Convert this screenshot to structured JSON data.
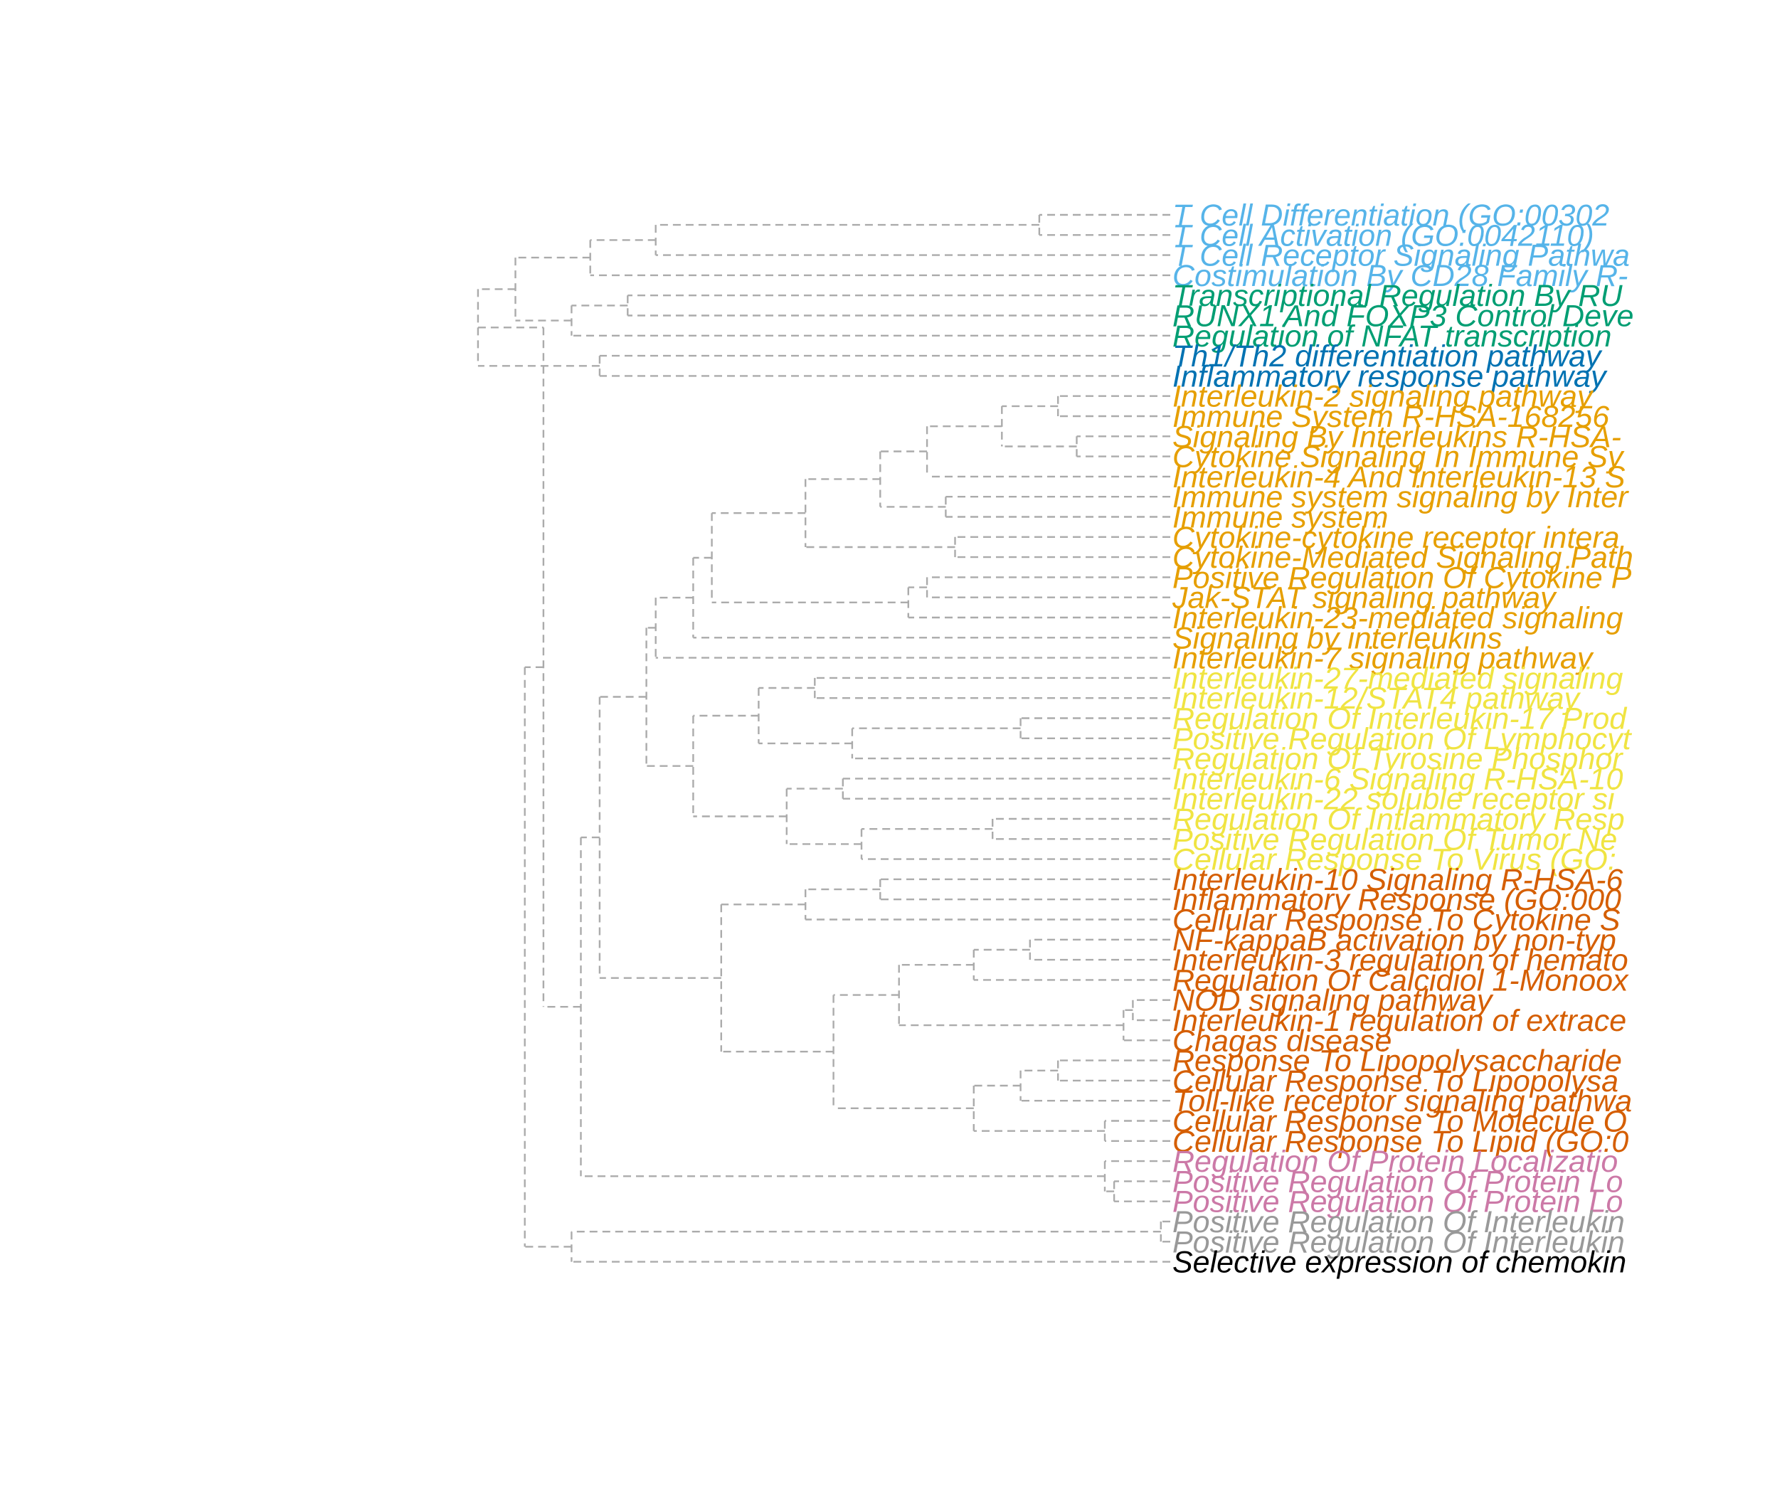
{
  "colors": {
    "branch": "#ababab",
    "sky_blue": "#56b4e9",
    "green": "#009e73",
    "blue": "#0072b2",
    "orange": "#e69f00",
    "yellow": "#f0e442",
    "vermillion": "#d55e00",
    "pink": "#cc79a7",
    "grey": "#999999",
    "black": "#000000"
  },
  "leaves": [
    {
      "label": "T Cell Differentiation (GO:00302",
      "color": "sky_blue"
    },
    {
      "label": "T Cell Activation (GO:0042110)",
      "color": "sky_blue"
    },
    {
      "label": "T Cell Receptor Signaling Pathwa",
      "color": "sky_blue"
    },
    {
      "label": "Costimulation By CD28 Family R-",
      "color": "sky_blue"
    },
    {
      "label": "Transcriptional Regulation By RU",
      "color": "green"
    },
    {
      "label": "RUNX1 And FOXP3 Control Deve",
      "color": "green"
    },
    {
      "label": "Regulation of NFAT transcription",
      "color": "green"
    },
    {
      "label": "Th1/Th2 differentiation pathway",
      "color": "blue"
    },
    {
      "label": "Inflammatory response pathway",
      "color": "blue"
    },
    {
      "label": "Interleukin-2 signaling pathway",
      "color": "orange"
    },
    {
      "label": "Immune System R-HSA-168256",
      "color": "orange"
    },
    {
      "label": "Signaling By Interleukins R-HSA-",
      "color": "orange"
    },
    {
      "label": "Cytokine Signaling In Immune Sy",
      "color": "orange"
    },
    {
      "label": "Interleukin-4 And Interleukin-13 S",
      "color": "orange"
    },
    {
      "label": "Immune system signaling by Inter",
      "color": "orange"
    },
    {
      "label": "Immune system",
      "color": "orange"
    },
    {
      "label": "Cytokine-cytokine receptor intera",
      "color": "orange"
    },
    {
      "label": "Cytokine-Mediated Signaling Path",
      "color": "orange"
    },
    {
      "label": "Positive Regulation Of Cytokine P",
      "color": "orange"
    },
    {
      "label": "Jak-STAT signaling pathway",
      "color": "orange"
    },
    {
      "label": "Interleukin-23-mediated signaling",
      "color": "orange"
    },
    {
      "label": "Signaling by interleukins",
      "color": "orange"
    },
    {
      "label": "Interleukin-7 signaling pathway",
      "color": "orange"
    },
    {
      "label": "Interleukin-27-mediated signaling",
      "color": "yellow"
    },
    {
      "label": "Interleukin-12/STAT4 pathway",
      "color": "yellow"
    },
    {
      "label": "Regulation Of Interleukin-17 Prod",
      "color": "yellow"
    },
    {
      "label": "Positive Regulation Of Lymphocyt",
      "color": "yellow"
    },
    {
      "label": "Regulation Of Tyrosine Phosphor",
      "color": "yellow"
    },
    {
      "label": "Interleukin-6 Signaling R-HSA-10",
      "color": "yellow"
    },
    {
      "label": "Interleukin-22 soluble receptor si",
      "color": "yellow"
    },
    {
      "label": "Regulation Of Inflammatory Resp",
      "color": "yellow"
    },
    {
      "label": "Positive Regulation Of Tumor Ne",
      "color": "yellow"
    },
    {
      "label": "Cellular Response To Virus (GO:",
      "color": "yellow"
    },
    {
      "label": "Interleukin-10 Signaling R-HSA-6",
      "color": "vermillion"
    },
    {
      "label": "Inflammatory Response (GO:000",
      "color": "vermillion"
    },
    {
      "label": "Cellular Response To Cytokine S",
      "color": "vermillion"
    },
    {
      "label": "NF-kappaB activation by non-typ",
      "color": "vermillion"
    },
    {
      "label": "Interleukin-3 regulation of hemato",
      "color": "vermillion"
    },
    {
      "label": "Regulation Of Calcidiol 1-Monoox",
      "color": "vermillion"
    },
    {
      "label": "NOD signaling pathway",
      "color": "vermillion"
    },
    {
      "label": "Interleukin-1 regulation of extrace",
      "color": "vermillion"
    },
    {
      "label": "Chagas disease",
      "color": "vermillion"
    },
    {
      "label": "Response To Lipopolysaccharide",
      "color": "vermillion"
    },
    {
      "label": "Cellular Response To Lipopolysa",
      "color": "vermillion"
    },
    {
      "label": "Toll-like receptor signaling pathwa",
      "color": "vermillion"
    },
    {
      "label": "Cellular Response To Molecule O",
      "color": "vermillion"
    },
    {
      "label": "Cellular Response To Lipid (GO:0",
      "color": "vermillion"
    },
    {
      "label": "Regulation Of Protein Localizatio",
      "color": "pink"
    },
    {
      "label": "Positive Regulation Of Protein Lo",
      "color": "pink"
    },
    {
      "label": "Positive Regulation Of Protein Lo",
      "color": "pink"
    },
    {
      "label": "Positive Regulation Of Interleukin",
      "color": "grey"
    },
    {
      "label": "Positive Regulation Of Interleukin",
      "color": "grey"
    },
    {
      "label": "Selective expression of chemokin",
      "color": "black"
    }
  ],
  "tree": {
    "merges": [
      [
        0,
        1,
        0.1
      ],
      [
        2,
        3,
        0.05
      ],
      [
        9,
        10,
        0.07
      ],
      [
        11,
        12,
        0.07
      ],
      [
        16,
        17,
        0.17
      ],
      [
        19,
        20,
        0.2
      ],
      [
        25,
        26,
        0.1
      ],
      [
        27,
        28,
        0.22
      ],
      [
        30,
        31,
        0.14
      ],
      [
        33,
        34,
        0.23
      ],
      [
        36,
        37,
        0.11
      ],
      [
        39,
        40,
        0.02
      ],
      [
        42,
        43,
        0.08
      ],
      [
        45,
        46,
        0.05
      ],
      [
        47,
        48,
        0.04
      ],
      [
        50,
        51,
        0.01
      ],
      [
        [
          0,
          1
        ],
        [
          2,
          3
        ],
        0.5
      ],
      [
        4,
        5,
        0.48
      ],
      [
        7,
        8,
        0.51
      ],
      [
        [
          9,
          10
        ],
        [
          11,
          12
        ],
        0.18
      ],
      [
        [
          39,
          40
        ],
        41,
        0.03
      ],
      [
        [
          16,
          17
        ],
        18,
        0.18
      ],
      [
        14,
        15,
        0.18
      ],
      [
        29,
        [
          30,
          31
        ],
        0.25
      ],
      [
        [
          33,
          34
        ],
        35,
        0.3
      ],
      [
        [
          36,
          37
        ],
        38,
        0.24
      ],
      [
        [
          42,
          43
        ],
        44,
        0.12
      ],
      [
        49,
        [
          47,
          48
        ],
        0.05
      ],
      [
        [
          [
            4,
            5
          ],
          6
        ],
        0.56
      ],
      [
        [
          [
            9,
            10
          ],
          [
            11,
            12
          ]
        ],
        13,
        0.24
      ],
      [
        [
          [
            4,
            5
          ],
          6
        ],
        [
          [
            0,
            1
          ],
          [
            2,
            3
          ]
        ],
        0.58
      ],
      [
        [
          [
            [
              9,
              10
            ],
            [
              11,
              12
            ]
          ],
          13
        ],
        [
          14,
          15
        ],
        0.34
      ],
      [
        23,
        24,
        0.41
      ],
      [
        [
          25,
          26
        ],
        [
          27,
          28
        ],
        0.35
      ],
      [
        [
          [
            30,
            31
          ],
          29
        ],
        32,
        0.36
      ],
      [
        [
          [
            36,
            37
          ],
          38
        ],
        [
          [
            [
              39,
              40
            ],
            41
          ]
        ],
        0.28
      ],
      [
        [
          [
            42,
            43
          ],
          44
        ],
        [
          45,
          46
        ],
        0.22
      ],
      [
        [
          [
            19,
            20
          ]
        ],
        [
          [
            16,
            17
          ],
          18
        ],
        0.31
      ]
    ]
  }
}
